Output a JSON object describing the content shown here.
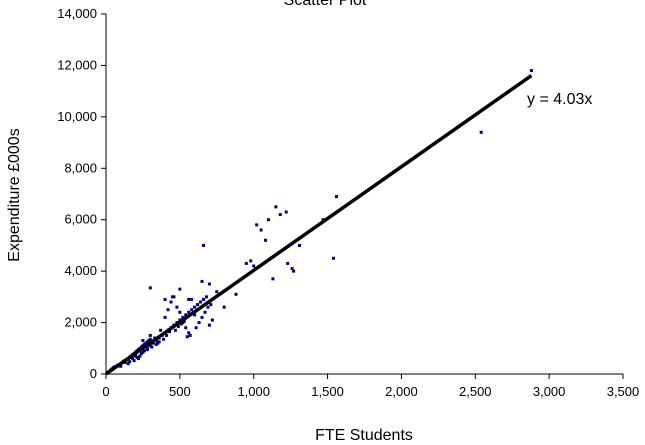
{
  "chart_data": {
    "type": "scatter",
    "title": "Scatter Plot",
    "xlabel": "FTE Students",
    "ylabel": "Expenditure £000s",
    "xlim": [
      0,
      3500
    ],
    "ylim": [
      0,
      14000
    ],
    "x_ticks": [
      0,
      500,
      1000,
      1500,
      2000,
      2500,
      3000,
      3500
    ],
    "y_ticks": [
      0,
      2000,
      4000,
      6000,
      8000,
      10000,
      12000,
      14000
    ],
    "x_tick_labels": [
      "0",
      "500",
      "1,000",
      "1,500",
      "2,000",
      "2,500",
      "3,000",
      "3,500"
    ],
    "y_tick_labels": [
      "0",
      "2,000",
      "4,000",
      "6,000",
      "8,000",
      "10,000",
      "12,000",
      "14,000"
    ],
    "grid": false,
    "point_color": "#000080",
    "trendline": {
      "label": "y = 4.03x",
      "slope": 4.03,
      "x_range": [
        0,
        2880
      ],
      "color": "#000000"
    },
    "series": [
      {
        "points": [
          [
            10,
            50
          ],
          [
            20,
            100
          ],
          [
            30,
            150
          ],
          [
            40,
            200
          ],
          [
            50,
            250
          ],
          [
            60,
            280
          ],
          [
            70,
            300
          ],
          [
            80,
            350
          ],
          [
            90,
            320
          ],
          [
            100,
            400
          ],
          [
            110,
            450
          ],
          [
            120,
            500
          ],
          [
            140,
            550
          ],
          [
            150,
            600
          ],
          [
            160,
            650
          ],
          [
            170,
            700
          ],
          [
            180,
            750
          ],
          [
            190,
            800
          ],
          [
            200,
            850
          ],
          [
            210,
            900
          ],
          [
            220,
            950
          ],
          [
            230,
            1000
          ],
          [
            240,
            1050
          ],
          [
            250,
            1100
          ],
          [
            260,
            1150
          ],
          [
            270,
            1200
          ],
          [
            280,
            1250
          ],
          [
            290,
            1300
          ],
          [
            300,
            1350
          ],
          [
            150,
            400
          ],
          [
            180,
            600
          ],
          [
            200,
            700
          ],
          [
            220,
            600
          ],
          [
            240,
            800
          ],
          [
            260,
            900
          ],
          [
            280,
            1000
          ],
          [
            300,
            1100
          ],
          [
            320,
            1200
          ],
          [
            340,
            1300
          ],
          [
            360,
            1400
          ],
          [
            380,
            1500
          ],
          [
            400,
            1600
          ],
          [
            420,
            1700
          ],
          [
            440,
            1800
          ],
          [
            460,
            1900
          ],
          [
            480,
            2000
          ],
          [
            500,
            2100
          ],
          [
            520,
            2200
          ],
          [
            540,
            2300
          ],
          [
            560,
            2400
          ],
          [
            580,
            2500
          ],
          [
            600,
            2600
          ],
          [
            620,
            2700
          ],
          [
            640,
            2800
          ],
          [
            660,
            2900
          ],
          [
            680,
            3000
          ],
          [
            250,
            1300
          ],
          [
            270,
            1100
          ],
          [
            300,
            1500
          ],
          [
            330,
            1400
          ],
          [
            350,
            1200
          ],
          [
            370,
            1700
          ],
          [
            400,
            2200
          ],
          [
            420,
            2500
          ],
          [
            440,
            2800
          ],
          [
            460,
            3000
          ],
          [
            480,
            2600
          ],
          [
            500,
            2400
          ],
          [
            520,
            2000
          ],
          [
            540,
            1800
          ],
          [
            560,
            1600
          ],
          [
            580,
            2900
          ],
          [
            600,
            2300
          ],
          [
            650,
            2200
          ],
          [
            700,
            1900
          ],
          [
            720,
            2100
          ],
          [
            750,
            3200
          ],
          [
            800,
            2600
          ],
          [
            880,
            3100
          ],
          [
            300,
            3350
          ],
          [
            400,
            2900
          ],
          [
            450,
            3000
          ],
          [
            500,
            3300
          ],
          [
            560,
            2900
          ],
          [
            650,
            3600
          ],
          [
            700,
            3500
          ],
          [
            660,
            5000
          ],
          [
            950,
            4300
          ],
          [
            980,
            4400
          ],
          [
            1000,
            4200
          ],
          [
            1020,
            5800
          ],
          [
            1050,
            5600
          ],
          [
            1080,
            5200
          ],
          [
            1100,
            6000
          ],
          [
            1130,
            3700
          ],
          [
            1150,
            6500
          ],
          [
            1180,
            6200
          ],
          [
            1220,
            6300
          ],
          [
            1230,
            4300
          ],
          [
            1260,
            4100
          ],
          [
            1270,
            4000
          ],
          [
            1310,
            5000
          ],
          [
            1470,
            6000
          ],
          [
            1540,
            4500
          ],
          [
            1560,
            6900
          ],
          [
            2540,
            9400
          ],
          [
            2880,
            11800
          ],
          [
            100,
            300
          ],
          [
            130,
            450
          ],
          [
            160,
            480
          ],
          [
            190,
            520
          ],
          [
            210,
            650
          ],
          [
            230,
            700
          ],
          [
            250,
            850
          ],
          [
            280,
            950
          ],
          [
            310,
            1050
          ],
          [
            340,
            1150
          ],
          [
            360,
            1250
          ],
          [
            390,
            1350
          ],
          [
            410,
            1500
          ],
          [
            430,
            1650
          ],
          [
            470,
            1700
          ],
          [
            490,
            1850
          ],
          [
            510,
            1950
          ],
          [
            530,
            2050
          ],
          [
            550,
            1450
          ],
          [
            570,
            1500
          ],
          [
            610,
            1800
          ],
          [
            630,
            2000
          ],
          [
            670,
            2400
          ],
          [
            690,
            2600
          ],
          [
            710,
            2700
          ]
        ]
      }
    ]
  }
}
